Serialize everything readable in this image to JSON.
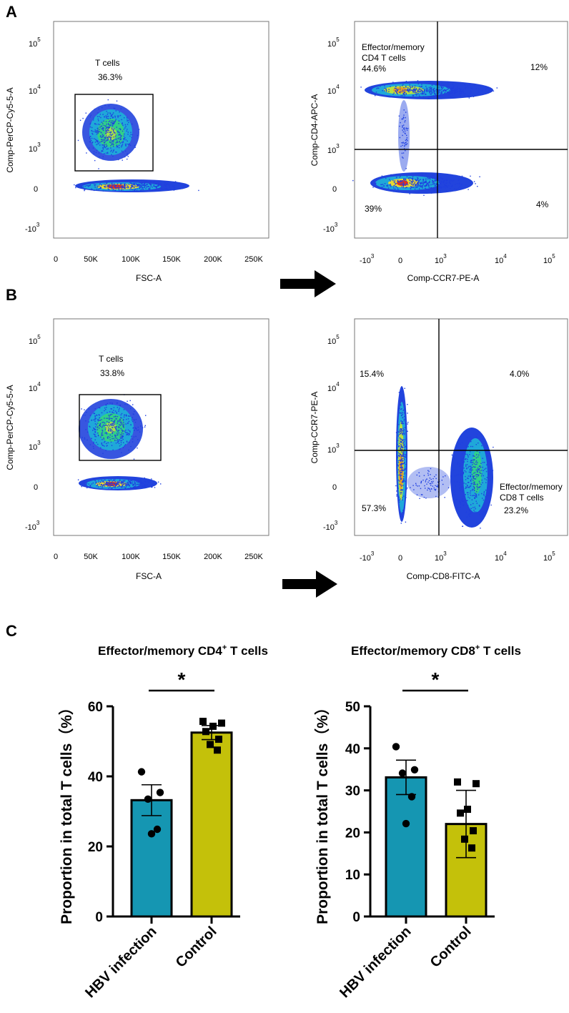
{
  "panels": {
    "A": "A",
    "B": "B",
    "C": "C"
  },
  "flow": {
    "A_left": {
      "ylabel": "Comp-PerCP-Cy5-5-A",
      "xlabel": "FSC-A",
      "xticks": [
        "0",
        "50K",
        "100K",
        "150K",
        "200K",
        "250K"
      ],
      "gate_name": "T cells",
      "gate_pct": "36.3%"
    },
    "A_right": {
      "ylabel": "Comp-CD4-APC-A",
      "xlabel": "Comp-CCR7-PE-A",
      "q_ul_line1": "Effector/memory",
      "q_ul_line2": "CD4 T cells",
      "q_ul": "44.6%",
      "q_ur": "12%",
      "q_ll": "39%",
      "q_lr": "4%"
    },
    "B_left": {
      "ylabel": "Comp-PerCP-Cy5-5-A",
      "xlabel": "FSC-A",
      "xticks": [
        "0",
        "50K",
        "100K",
        "150K",
        "200K",
        "250K"
      ],
      "gate_name": "T cells",
      "gate_pct": "33.8%"
    },
    "B_right": {
      "ylabel": "Comp-CCR7-PE-A",
      "xlabel": "Comp-CD8-FITC-A",
      "q_ul": "15.4%",
      "q_ur": "4.0%",
      "q_ll": "57.3%",
      "q_lr_line1": "Effector/memory",
      "q_lr_line2": "CD8 T cells",
      "q_lr": "23.2%"
    },
    "log_ticks": {
      "base": "10",
      "exp_pos": [
        "5",
        "4",
        "3"
      ],
      "zero": "0",
      "neg": "-10",
      "neg_exp": "3"
    }
  },
  "chart_data": [
    {
      "type": "bar",
      "title": "Effector/memory CD4",
      "title_sup": "+",
      "title_tail": " T cells",
      "ylabel": "Proportion in total T cells（%）",
      "categories": [
        "HBV infection",
        "Control"
      ],
      "values": [
        33.2,
        52.5
      ],
      "error": [
        4.4,
        2.0
      ],
      "points": [
        [
          41.3,
          35.4,
          33.5,
          24.9,
          23.6
        ],
        [
          55.7,
          55.2,
          54.3,
          52.8,
          50.6,
          49.1,
          47.5
        ]
      ],
      "ylim": [
        0,
        60
      ],
      "yticks": [
        "0",
        "20",
        "40",
        "60"
      ],
      "significance": "*",
      "colors": [
        "#1596b2",
        "#c4c10a"
      ]
    },
    {
      "type": "bar",
      "title": "Effector/memory CD8",
      "title_sup": "+",
      "title_tail": " T cells",
      "ylabel": "Proportion in total T cells（%）",
      "categories": [
        "HBV infection",
        "Control"
      ],
      "values": [
        33.1,
        22.0
      ],
      "error": [
        4.1,
        8.0
      ],
      "points": [
        [
          40.4,
          34.9,
          34.1,
          28.5,
          22.1
        ],
        [
          32.0,
          31.6,
          25.5,
          24.6,
          20.4,
          18.4,
          16.3
        ]
      ],
      "ylim": [
        0,
        50
      ],
      "yticks": [
        "0",
        "10",
        "20",
        "30",
        "40",
        "50"
      ],
      "significance": "*",
      "colors": [
        "#1596b2",
        "#c4c10a"
      ]
    }
  ]
}
